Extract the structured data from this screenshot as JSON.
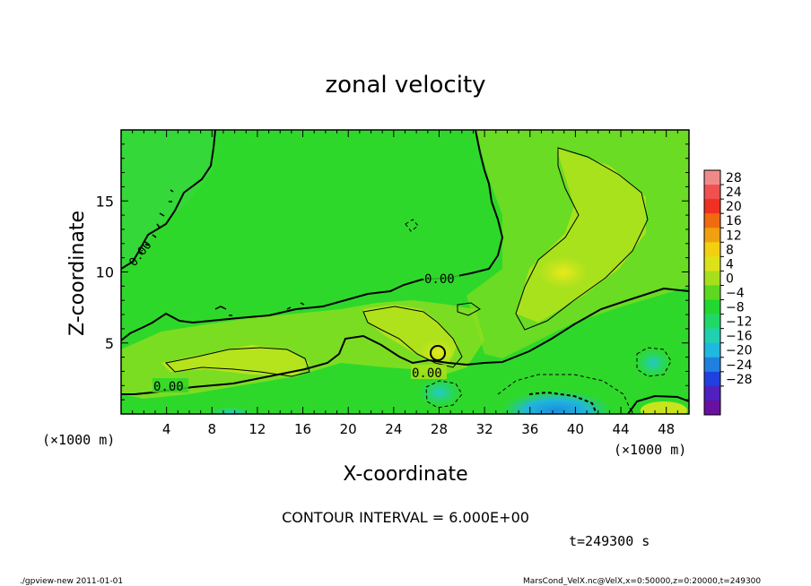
{
  "chart_data": {
    "type": "heatmap",
    "title": "zonal velocity",
    "xlabel": "X-coordinate",
    "ylabel": "Z-coordinate",
    "x_unit": "(×1000 m)",
    "z_unit": "(×1000 m)",
    "xlim": [
      0,
      50
    ],
    "ylim": [
      0,
      20
    ],
    "x_ticks": [
      "4",
      "8",
      "12",
      "16",
      "20",
      "24",
      "28",
      "32",
      "36",
      "40",
      "44",
      "48"
    ],
    "y_ticks": [
      "5",
      "10",
      "15"
    ],
    "colorbar_ticks": [
      "28",
      "24",
      "20",
      "16",
      "12",
      "8",
      "4",
      "0",
      "−4",
      "−8",
      "−12",
      "−16",
      "−20",
      "−24",
      "−28"
    ],
    "contour_labels": [
      "0.00",
      "0.00",
      "0.00",
      "0.00"
    ],
    "contour_interval_text": "CONTOUR INTERVAL = 6.000E+00",
    "time_text": "t=249300 s",
    "footer_left": "./gpview-new  2011-01-01",
    "footer_right": "MarsCond_VelX.nc@VelX,x=0:50000,z=0:20000,t=249300",
    "colors": {
      "background_field": "#2ed82a",
      "positive_region": "#a6e01a",
      "maximum_region": "#dfe81c",
      "negative_region": "#1edc7c",
      "minimum_region": "#2aa6e0"
    }
  }
}
